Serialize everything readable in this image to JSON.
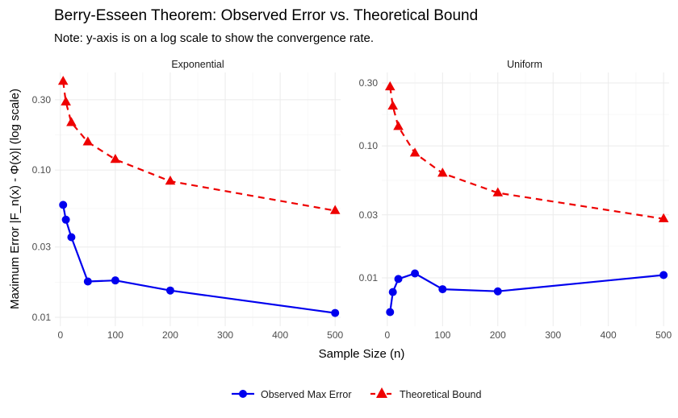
{
  "chart_data": {
    "type": "line",
    "title": "Berry-Esseen Theorem: Observed Error vs. Theoretical Bound",
    "subtitle": "Note: y-axis is on a log scale to show the convergence rate.",
    "xlabel": "Sample Size (n)",
    "ylabel": "Maximum Error |F_n(x) - Φ(x)| (log scale)",
    "xlim": [
      -10,
      510
    ],
    "x_ticks": [
      0,
      100,
      200,
      300,
      400,
      500
    ],
    "x_tick_labels": [
      "0",
      "100",
      "200",
      "300",
      "400",
      "500"
    ],
    "yscale": "log10",
    "grid": true,
    "legend_position": "bottom",
    "panels": [
      {
        "name": "Exponential",
        "ylim": [
          0.0087,
          0.46
        ],
        "y_ticks": [
          0.01,
          0.03,
          0.1,
          0.3
        ],
        "y_tick_labels": [
          "0.01",
          "0.03",
          "0.10",
          "0.30"
        ],
        "series": [
          {
            "name": "Observed Max Error",
            "x": [
              5,
              10,
              20,
              50,
              100,
              200,
              500
            ],
            "y": [
              0.058,
              0.046,
              0.035,
              0.0175,
              0.0178,
              0.0152,
              0.0107
            ]
          },
          {
            "name": "Theoretical Bound",
            "x": [
              5,
              10,
              20,
              50,
              100,
              200,
              500
            ],
            "y": [
              0.4,
              0.29,
              0.21,
              0.155,
              0.118,
              0.084,
              0.053
            ]
          }
        ]
      },
      {
        "name": "Uniform",
        "ylim": [
          0.0043,
          0.36
        ],
        "y_ticks": [
          0.01,
          0.03,
          0.1,
          0.3
        ],
        "y_tick_labels": [
          "0.01",
          "0.03",
          "0.10",
          "0.30"
        ],
        "series": [
          {
            "name": "Observed Max Error",
            "x": [
              5,
              10,
              20,
              50,
              100,
              200,
              500
            ],
            "y": [
              0.0055,
              0.0078,
              0.0098,
              0.0108,
              0.0082,
              0.0079,
              0.0105
            ]
          },
          {
            "name": "Theoretical Bound",
            "x": [
              5,
              10,
              20,
              50,
              100,
              200,
              500
            ],
            "y": [
              0.28,
              0.2,
              0.14,
              0.088,
              0.062,
              0.044,
              0.028
            ]
          }
        ]
      }
    ],
    "legend": [
      {
        "name": "Observed Max Error",
        "color": "#0000ee",
        "marker": "circle",
        "line": "solid"
      },
      {
        "name": "Theoretical Bound",
        "color": "#ee0000",
        "marker": "triangle",
        "line": "dashed"
      }
    ]
  }
}
